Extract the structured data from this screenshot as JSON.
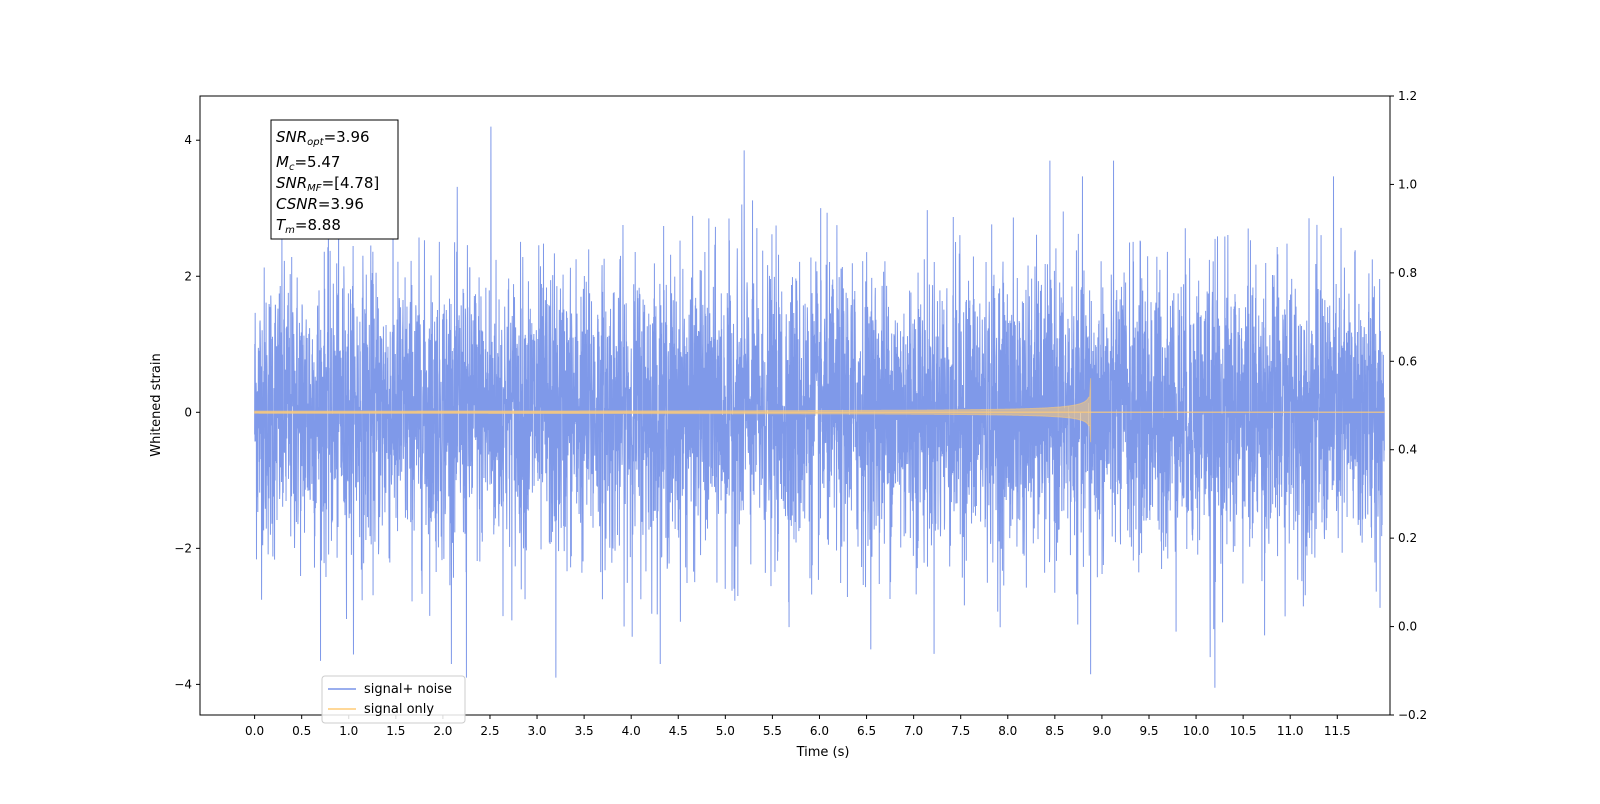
{
  "chart_data": {
    "type": "line",
    "xlabel": "Time (s)",
    "ylabel": "Whitened strain",
    "xlim": [
      -0.58,
      12.06
    ],
    "ylim": [
      -4.45,
      4.65
    ],
    "ylim_right": [
      -0.2,
      1.2
    ],
    "x_ticks": [
      0.0,
      0.5,
      1.0,
      1.5,
      2.0,
      2.5,
      3.0,
      3.5,
      4.0,
      4.5,
      5.0,
      5.5,
      6.0,
      6.5,
      7.0,
      7.5,
      8.0,
      8.5,
      9.0,
      9.5,
      10.0,
      10.5,
      11.0,
      11.5
    ],
    "x_tick_labels": [
      "0.0",
      "0.5",
      "1.0",
      "1.5",
      "2.0",
      "2.5",
      "3.0",
      "3.5",
      "4.0",
      "4.5",
      "5.0",
      "5.5",
      "6.0",
      "6.5",
      "7.0",
      "7.5",
      "8.0",
      "8.5",
      "9.0",
      "9.5",
      "10.0",
      "10.5",
      "11.0",
      "11.5"
    ],
    "y_ticks": [
      -4,
      -2,
      0,
      2,
      4
    ],
    "y_tick_labels": [
      "−4",
      "−2",
      "0",
      "2",
      "4"
    ],
    "y_ticks_right": [
      -0.2,
      0.0,
      0.2,
      0.4,
      0.6,
      0.8,
      1.0,
      1.2
    ],
    "y_tick_labels_right": [
      "−0.2",
      "0.0",
      "0.2",
      "0.4",
      "0.6",
      "0.8",
      "1.0",
      "1.2"
    ],
    "grid": false,
    "legend_position": "lower-left",
    "series": [
      {
        "name": "signal+ noise",
        "color": "#7893e8",
        "x_range": [
          0.0,
          12.0
        ],
        "approx_range": [
          -4.1,
          4.2
        ],
        "peaks": [
          {
            "x": 2.51,
            "y": 4.2
          },
          {
            "x": 5.2,
            "y": 3.85
          },
          {
            "x": 2.25,
            "y": -3.9
          },
          {
            "x": 3.2,
            "y": -3.9
          },
          {
            "x": 8.88,
            "y": -3.85
          },
          {
            "x": 10.2,
            "y": -4.05
          },
          {
            "x": 10.15,
            "y": -3.6
          }
        ]
      },
      {
        "name": "signal only",
        "color": "#ffcc77",
        "x_range": [
          0.0,
          12.0
        ],
        "chirp_start": 0.0,
        "chirp_end": 8.88,
        "peak_amplitude": 0.5
      }
    ],
    "annotation": {
      "lines": [
        {
          "base": "SNR",
          "sub": "opt",
          "rest": "=3.96"
        },
        {
          "base": "M",
          "sub": "c",
          "rest": "=5.47"
        },
        {
          "base": "SNR",
          "sub": "MF",
          "rest": "=[4.78]"
        },
        {
          "base": "CSNR",
          "sub": "",
          "rest": "=3.96"
        },
        {
          "base": "T",
          "sub": "m",
          "rest": "=8.88"
        }
      ]
    }
  }
}
